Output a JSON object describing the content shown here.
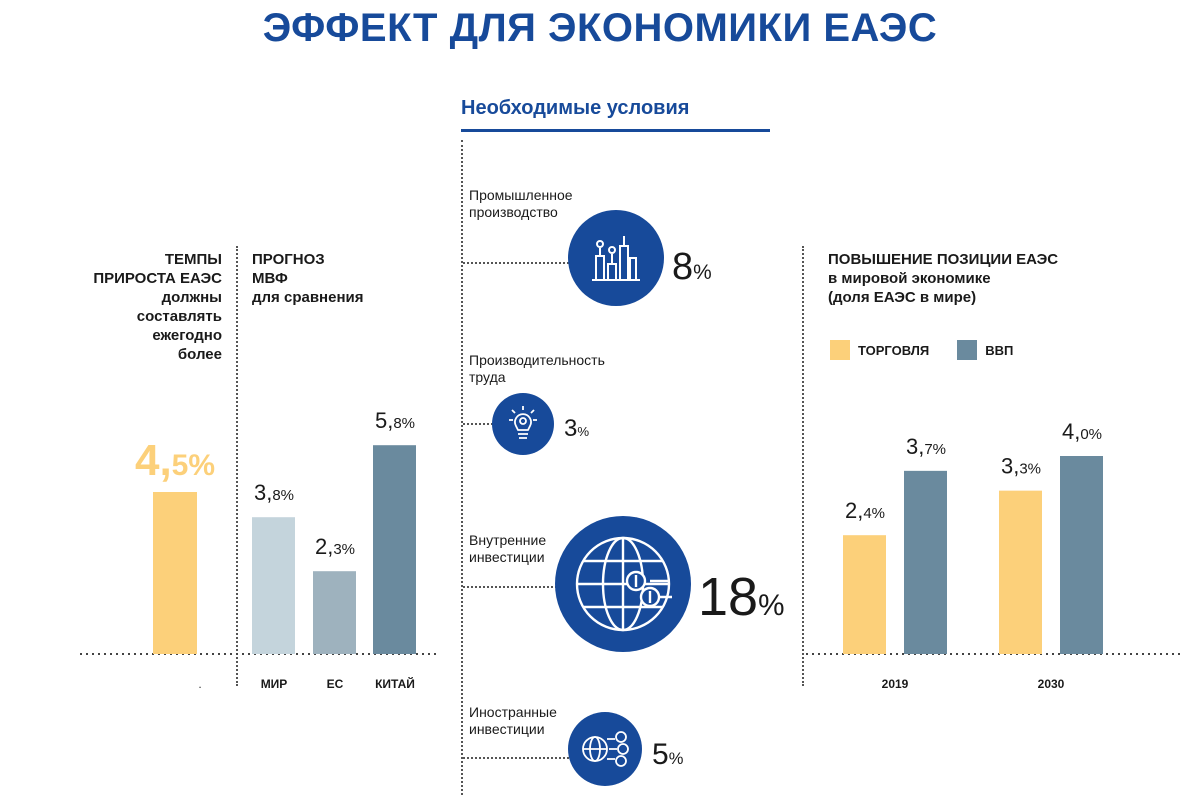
{
  "title": "ЭФФЕКТ ДЛЯ ЭКОНОМИКИ ЕАЭС",
  "conditions": {
    "heading": "Необходимые условия",
    "items": [
      {
        "label_line1": "Промышленное",
        "label_line2": "производство",
        "value": "8",
        "unit": "%",
        "icon": "factory-icon"
      },
      {
        "label_line1": "Производительность",
        "label_line2": "труда",
        "value": "3",
        "unit": "%",
        "icon": "lightbulb-gear-icon"
      },
      {
        "label_line1": "Внутренние",
        "label_line2": "инвестиции",
        "value": "18",
        "unit": "%",
        "icon": "globe-dollar-icon"
      },
      {
        "label_line1": "Иностранные",
        "label_line2": "инвестиции",
        "value": "5",
        "unit": "%",
        "icon": "globe-dollar-outflow-icon"
      }
    ]
  },
  "colors": {
    "accent_blue": "#174a9a",
    "yellow": "#fcd07a",
    "slate": "#6a8a9e",
    "light_blue": "#c4d4dc",
    "mid_blue": "#9eb2be"
  },
  "chart_data": [
    {
      "type": "bar",
      "title_lines": [
        "ТЕМПЫ",
        "ПРИРОСТА ЕАЭС",
        "должны",
        "составлять",
        "ежегодно",
        "более"
      ],
      "categories": [
        "."
      ],
      "values": [
        4.5
      ],
      "value_labels": [
        {
          "int": "4,",
          "dec": "5%"
        }
      ],
      "ylim": [
        0,
        7.25
      ]
    },
    {
      "type": "bar",
      "title_lines": [
        "ПРОГНОЗ",
        "МВФ",
        "для сравнения"
      ],
      "categories": [
        "МИР",
        "ЕС",
        "КИТАЙ"
      ],
      "values": [
        3.8,
        2.3,
        5.8
      ],
      "value_labels": [
        {
          "int": "3,",
          "dec": "8%"
        },
        {
          "int": "2,",
          "dec": "3%"
        },
        {
          "int": "5,",
          "dec": "8%"
        }
      ],
      "ylim": [
        0,
        7.25
      ]
    },
    {
      "type": "bar",
      "title_lines": [
        "ПОВЫШЕНИЕ ПОЗИЦИИ ЕАЭС",
        "в мировой экономике",
        "(доля ЕАЭС в мире)"
      ],
      "categories": [
        "2019",
        "2030"
      ],
      "series": [
        {
          "name": "ТОРГОВЛЯ",
          "values": [
            2.4,
            3.3
          ],
          "value_labels": [
            {
              "int": "2,",
              "dec": "4%"
            },
            {
              "int": "3,",
              "dec": "3%"
            }
          ]
        },
        {
          "name": "ВВП",
          "values": [
            3.7,
            4.0
          ],
          "value_labels": [
            {
              "int": "3,",
              "dec": "7%"
            },
            {
              "int": "4,",
              "dec": "0%"
            }
          ]
        }
      ],
      "legend": "top-left",
      "ylim": [
        0,
        6.0
      ]
    }
  ]
}
